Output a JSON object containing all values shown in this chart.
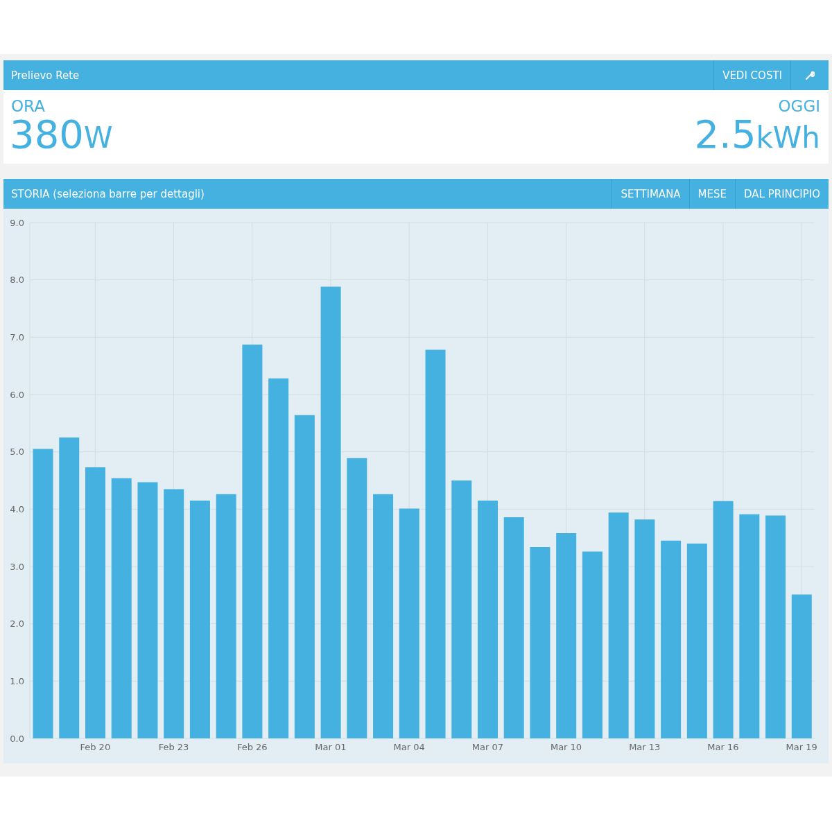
{
  "chart_data": {
    "type": "bar",
    "title": "Prelievo Rete",
    "subtitle": "STORIA (seleziona barre per dettagli)",
    "annotations": [
      "VEDI COSTI",
      "ORA",
      "380W",
      "OGGI",
      "2.5kWh",
      "SETTIMANA",
      "MESE",
      "DAL PRINCIPIO"
    ],
    "categories": [
      null,
      null,
      "Feb 20",
      null,
      null,
      "Feb 23",
      null,
      null,
      "Feb 26",
      null,
      null,
      "Mar 01",
      null,
      null,
      "Mar 04",
      null,
      null,
      "Mar 07",
      null,
      null,
      "Mar 10",
      null,
      null,
      "Mar 13",
      null,
      null,
      "Mar 16",
      null,
      null,
      "Mar 19"
    ],
    "values": [
      5.05,
      5.25,
      4.73,
      4.54,
      4.47,
      4.35,
      4.15,
      4.26,
      6.87,
      6.28,
      5.64,
      7.88,
      4.89,
      4.26,
      4.01,
      6.78,
      4.5,
      4.15,
      3.86,
      3.34,
      3.58,
      3.26,
      3.94,
      3.82,
      3.45,
      3.4,
      4.14,
      3.91,
      3.89,
      2.51
    ],
    "color": "#45b1e0",
    "ylim": [
      0,
      9
    ],
    "yticks": [
      {
        "value": 0,
        "label": "0.0"
      },
      {
        "value": 1,
        "label": "1.0"
      },
      {
        "value": 2,
        "label": "2.0"
      },
      {
        "value": 3,
        "label": "3.0"
      },
      {
        "value": 4,
        "label": "4.0"
      },
      {
        "value": 5,
        "label": "5.0"
      },
      {
        "value": 6,
        "label": "6.0"
      },
      {
        "value": 7,
        "label": "7.0"
      },
      {
        "value": 8,
        "label": "8.0"
      },
      {
        "value": 9,
        "label": "9.0"
      }
    ],
    "grid": true
  }
}
